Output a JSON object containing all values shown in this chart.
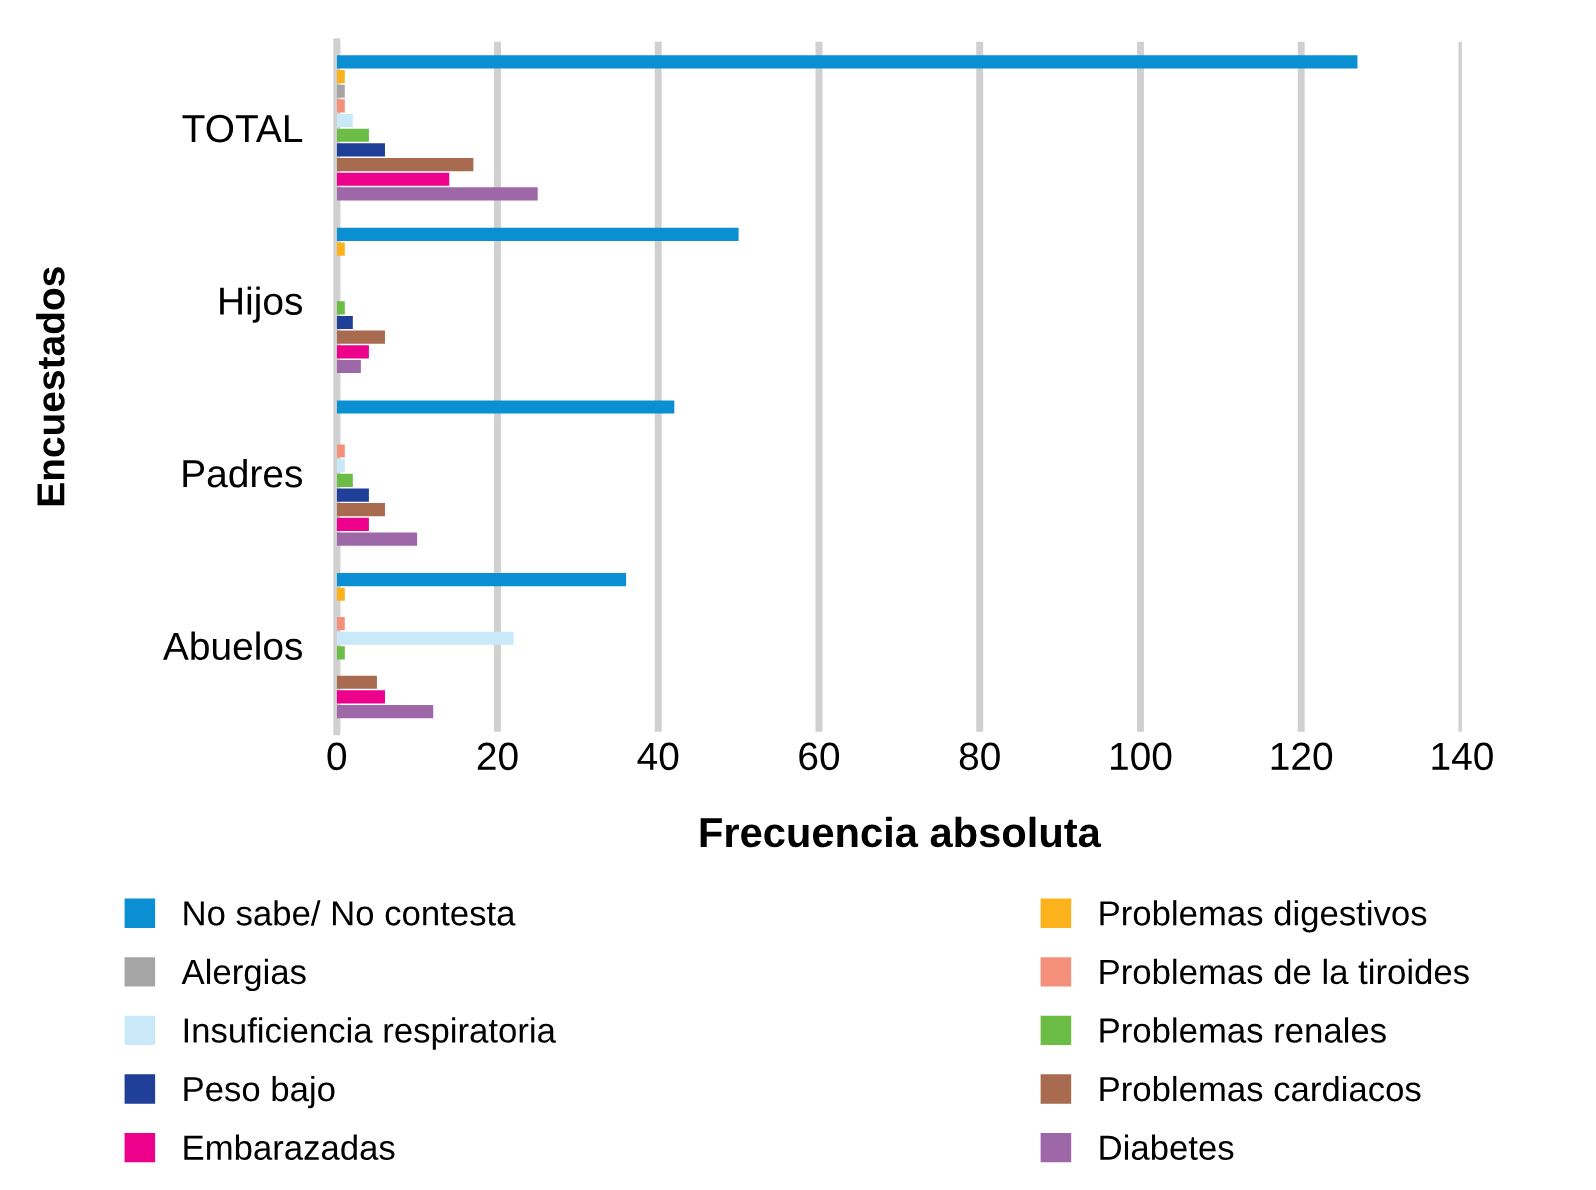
{
  "chart_data": {
    "type": "bar",
    "orientation": "horizontal",
    "xlabel": "Frecuencia absoluta",
    "ylabel": "Encuestados",
    "categories": [
      "TOTAL",
      "Hijos",
      "Padres",
      "Abuelos"
    ],
    "series": [
      {
        "name": "No sabe/ No contesta",
        "color": "#0a8fd3",
        "values": [
          127,
          50,
          42,
          36
        ]
      },
      {
        "name": "Problemas digestivos",
        "color": "#fbb21c",
        "values": [
          1,
          1,
          0,
          1
        ]
      },
      {
        "name": "Alergias",
        "color": "#a5a5a5",
        "values": [
          1,
          0,
          0,
          0
        ]
      },
      {
        "name": "Problemas de la tiroides",
        "color": "#f4907a",
        "values": [
          1,
          0,
          1,
          1
        ]
      },
      {
        "name": "Insuficiencia respiratoria",
        "color": "#c9e9f9",
        "values": [
          2,
          0,
          1,
          22
        ]
      },
      {
        "name": "Problemas renales",
        "color": "#6cbd45",
        "values": [
          4,
          1,
          2,
          1
        ]
      },
      {
        "name": "Peso bajo",
        "color": "#203f99",
        "values": [
          6,
          2,
          4,
          0
        ]
      },
      {
        "name": "Problemas cardiacos",
        "color": "#a86b4f",
        "values": [
          17,
          6,
          6,
          5
        ]
      },
      {
        "name": "Embarazadas",
        "color": "#ec008c",
        "values": [
          14,
          4,
          4,
          6
        ]
      },
      {
        "name": "Diabetes",
        "color": "#9e67a8",
        "values": [
          25,
          3,
          10,
          12
        ]
      }
    ],
    "xlim": [
      0,
      140
    ],
    "xticks": [
      0,
      20,
      40,
      60,
      80,
      100,
      120,
      140
    ],
    "grid": "x",
    "legend": "bottom"
  }
}
